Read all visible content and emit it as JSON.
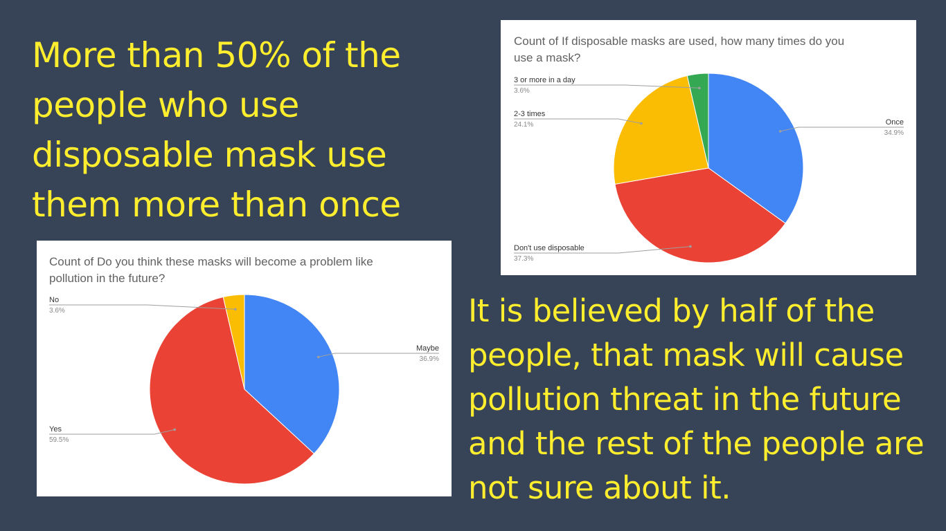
{
  "slide": {
    "headline_top": "More than 50% of the people who use disposable mask use them more than once",
    "headline_bottom": "It is believed by half of the people, that mask will cause pollution threat in the future and the rest of the people are not sure about it."
  },
  "chart_data": [
    {
      "type": "pie",
      "title_lines": [
        "Count of If disposable masks are used, how many times do you",
        "use a mask?"
      ],
      "slices": [
        {
          "label": "Once",
          "value": 34.9,
          "pct_label": "34.9%",
          "color": "#4285f4"
        },
        {
          "label": "Don't use disposable",
          "value": 37.3,
          "pct_label": "37.3%",
          "color": "#ea4335"
        },
        {
          "label": "2-3 times",
          "value": 24.1,
          "pct_label": "24.1%",
          "color": "#fbbc04"
        },
        {
          "label": "3 or more in a day",
          "value": 3.6,
          "pct_label": "3.6%",
          "color": "#34a853"
        }
      ]
    },
    {
      "type": "pie",
      "title_lines": [
        "Count of Do you think these masks will become a problem like",
        "pollution in the future?"
      ],
      "slices": [
        {
          "label": "Maybe",
          "value": 36.9,
          "pct_label": "36.9%",
          "color": "#4285f4"
        },
        {
          "label": "Yes",
          "value": 59.5,
          "pct_label": "59.5%",
          "color": "#ea4335"
        },
        {
          "label": "No",
          "value": 3.6,
          "pct_label": "3.6%",
          "color": "#fbbc04"
        }
      ]
    }
  ]
}
